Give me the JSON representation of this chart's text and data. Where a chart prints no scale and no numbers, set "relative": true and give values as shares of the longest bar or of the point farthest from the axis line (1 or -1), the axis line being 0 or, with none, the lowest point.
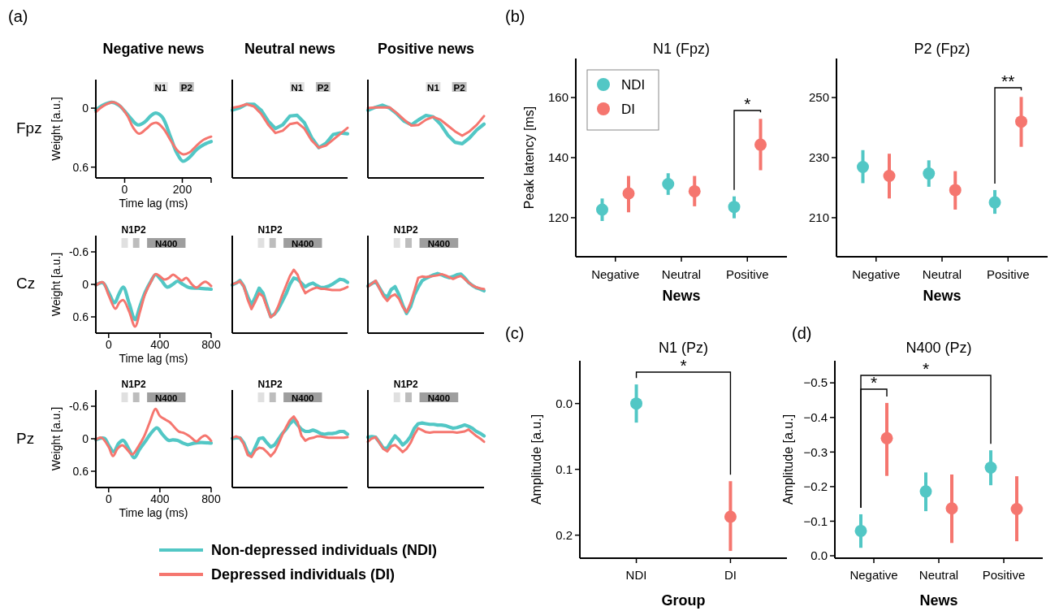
{
  "chart_data": [
    {
      "type": "line",
      "title": "Negative news",
      "xlabel": "Time lag (ms)",
      "ylabel": "Weight [a.u.]",
      "annotations": [
        "(a)",
        "Fpz"
      ],
      "xlim": [
        -100,
        300
      ],
      "xticks": [
        0,
        200,
        {
          "value": 300,
          "label": null
        }
      ],
      "ylim": [
        0.71,
        -0.29
      ],
      "yticks": [
        0,
        0.6
      ],
      "bands": [
        {
          "axis": "x",
          "from": 100,
          "to": 150,
          "label": "N1",
          "color": "#e0e0e0"
        },
        {
          "axis": "x",
          "from": 190,
          "to": 240,
          "label": "P2",
          "color": "#bdbdbd"
        }
      ],
      "series": [
        {
          "color": "#52c7c5",
          "x": [
            -100,
            -75,
            -45,
            -20,
            0,
            20,
            45,
            70,
            90,
            108,
            130,
            160,
            180,
            202,
            225,
            250,
            275,
            300
          ],
          "values": [
            0.02,
            -0.03,
            -0.06,
            -0.03,
            0.03,
            0.1,
            0.17,
            0.14,
            0.08,
            0.05,
            0.09,
            0.3,
            0.45,
            0.54,
            0.5,
            0.42,
            0.37,
            0.34
          ]
        },
        {
          "color": "#f5766f",
          "x": [
            -100,
            -75,
            -40,
            -15,
            10,
            30,
            50,
            75,
            95,
            112,
            135,
            160,
            180,
            203,
            225,
            250,
            275,
            300
          ],
          "values": [
            0.04,
            -0.02,
            -0.06,
            -0.02,
            0.08,
            0.2,
            0.26,
            0.21,
            0.16,
            0.15,
            0.21,
            0.33,
            0.42,
            0.47,
            0.45,
            0.38,
            0.32,
            0.29
          ]
        }
      ]
    },
    {
      "type": "line",
      "title": "Neutral news",
      "relative": true,
      "annotations": [
        "N1",
        "P2"
      ],
      "categories": [
        null,
        null,
        null,
        null,
        null,
        null,
        null,
        null,
        null,
        null,
        null,
        null,
        null,
        null,
        null,
        null,
        null
      ],
      "series": [
        {
          "color": "#52c7c5",
          "values": [
            0.92,
            0.95,
            1,
            1,
            0.92,
            0.77,
            0.67,
            0.72,
            0.84,
            0.85,
            0.75,
            0.55,
            0.41,
            0.47,
            0.59,
            0.61,
            0.6
          ]
        },
        {
          "color": "#f5766f",
          "values": [
            0.95,
            0.97,
            1,
            0.97,
            0.87,
            0.72,
            0.61,
            0.64,
            0.73,
            0.75,
            0.67,
            0.51,
            0.41,
            0.44,
            0.52,
            0.6,
            0.68
          ]
        }
      ]
    },
    {
      "type": "line",
      "title": "Positive news",
      "relative": true,
      "annotations": [
        "N1",
        "P2"
      ],
      "categories": [
        null,
        null,
        null,
        null,
        null,
        null,
        null,
        null,
        null,
        null,
        null,
        null,
        null,
        null,
        null,
        null,
        null
      ],
      "series": [
        {
          "color": "#52c7c5",
          "values": [
            0.93,
            0.97,
            1,
            0.96,
            0.88,
            0.78,
            0.73,
            0.8,
            0.86,
            0.84,
            0.74,
            0.59,
            0.49,
            0.47,
            0.55,
            0.66,
            0.74
          ]
        },
        {
          "color": "#f5766f",
          "values": [
            0.96,
            0.97,
            0.97,
            0.97,
            0.89,
            0.8,
            0.72,
            0.73,
            0.8,
            0.84,
            0.8,
            0.72,
            0.64,
            0.58,
            0.64,
            0.73,
            0.85
          ]
        }
      ]
    },
    {
      "type": "line",
      "xlabel": "Time lag (ms)",
      "ylabel": "Weight [a.u.]",
      "annotations": [
        "Cz",
        "N1P2"
      ],
      "xlim": [
        -100,
        800
      ],
      "xticks": [
        0,
        400,
        800
      ],
      "ylim": [
        0.9,
        -0.9
      ],
      "yticks": [
        -0.6,
        0,
        0.6
      ],
      "bands": [
        {
          "axis": "x",
          "from": 100,
          "to": 150,
          "color": "#e0e0e0"
        },
        {
          "axis": "x",
          "from": 190,
          "to": 240,
          "color": "#bdbdbd"
        },
        {
          "axis": "x",
          "from": 300,
          "to": 600,
          "label": "N400",
          "color": "#9e9e9e"
        }
      ],
      "series": [
        {
          "color": "#52c7c5",
          "x": [
            -100,
            -46,
            0,
            46,
            80,
            114,
            160,
            206,
            245,
            286,
            330,
            366,
            410,
            457,
            500,
            537,
            580,
            629,
            700,
            800
          ],
          "values": [
            0.01,
            -0.03,
            0.15,
            0.34,
            0.18,
            0.05,
            0.35,
            0.65,
            0.4,
            0.14,
            -0.06,
            -0.18,
            -0.08,
            0.05,
            0.0,
            -0.06,
            0.0,
            0.06,
            0.07,
            0.09
          ]
        },
        {
          "color": "#f5766f",
          "x": [
            -100,
            -46,
            0,
            53,
            85,
            114,
            160,
            206,
            245,
            286,
            330,
            366,
            400,
            434,
            470,
            503,
            540,
            571,
            606,
            650,
            686,
            720,
            754,
            800
          ],
          "values": [
            0.02,
            -0.04,
            0.2,
            0.45,
            0.33,
            0.29,
            0.5,
            0.78,
            0.5,
            0.17,
            -0.05,
            -0.19,
            -0.15,
            -0.09,
            -0.12,
            -0.18,
            -0.12,
            -0.07,
            -0.12,
            0.0,
            0.06,
            0.0,
            -0.05,
            0.03
          ]
        }
      ]
    },
    {
      "type": "line",
      "relative": true,
      "annotations": [
        "N400",
        "N1P2"
      ],
      "categories": [
        null,
        null,
        null,
        null,
        null,
        null,
        null,
        null,
        null,
        null,
        null,
        null,
        null,
        null,
        null,
        null,
        null,
        null,
        null,
        null,
        null,
        null,
        null,
        null,
        null,
        null,
        null,
        null,
        null,
        null,
        null
      ],
      "series": [
        {
          "color": "#52c7c5",
          "values": [
            0.76,
            0.79,
            0.83,
            0.74,
            0.58,
            0.44,
            0.57,
            0.71,
            0.63,
            0.44,
            0.26,
            0.3,
            0.38,
            0.5,
            0.62,
            0.77,
            0.87,
            0.85,
            0.79,
            0.73,
            0.77,
            0.79,
            0.75,
            0.72,
            0.72,
            0.74,
            0.77,
            0.81,
            0.85,
            0.84,
            0.8
          ]
        },
        {
          "color": "#f5766f",
          "values": [
            0.77,
            0.79,
            0.82,
            0.74,
            0.53,
            0.38,
            0.5,
            0.63,
            0.58,
            0.41,
            0.25,
            0.3,
            0.43,
            0.6,
            0.75,
            0.9,
            1,
            0.92,
            0.75,
            0.63,
            0.67,
            0.7,
            0.72,
            0.7,
            0.7,
            0.69,
            0.68,
            0.68,
            0.68,
            0.7,
            0.73
          ]
        }
      ]
    },
    {
      "type": "line",
      "relative": true,
      "annotations": [
        "N400",
        "N1P2"
      ],
      "categories": [
        null,
        null,
        null,
        null,
        null,
        null,
        null,
        null,
        null,
        null,
        null,
        null,
        null,
        null,
        null,
        null,
        null,
        null,
        null,
        null,
        null,
        null,
        null,
        null,
        null,
        null,
        null,
        null,
        null,
        null,
        null
      ],
      "series": [
        {
          "color": "#52c7c5",
          "values": [
            0.79,
            0.83,
            0.87,
            0.76,
            0.65,
            0.6,
            0.73,
            0.78,
            0.65,
            0.47,
            0.33,
            0.44,
            0.64,
            0.77,
            0.88,
            0.92,
            0.95,
            0.98,
            1,
            0.98,
            0.95,
            0.93,
            0.95,
            0.98,
            0.99,
            0.93,
            0.85,
            0.8,
            0.76,
            0.74,
            0.71
          ]
        },
        {
          "color": "#f5766f",
          "values": [
            0.78,
            0.83,
            0.88,
            0.75,
            0.62,
            0.54,
            0.62,
            0.65,
            0.58,
            0.44,
            0.35,
            0.5,
            0.71,
            0.93,
            0.95,
            0.94,
            0.95,
            0.96,
            0.97,
            0.99,
            0.97,
            0.94,
            0.91,
            0.94,
            0.96,
            0.91,
            0.85,
            0.8,
            0.77,
            0.75,
            0.74
          ]
        }
      ]
    },
    {
      "type": "line",
      "xlabel": "Time lag (ms)",
      "ylabel": "Weight [a.u.]",
      "annotations": [
        "Pz",
        "N1P2"
      ],
      "xlim": [
        -100,
        800
      ],
      "xticks": [
        0,
        400,
        800
      ],
      "ylim": [
        0.9,
        -0.9
      ],
      "yticks": [
        -0.6,
        0,
        0.6
      ],
      "bands": [
        {
          "axis": "x",
          "from": 100,
          "to": 150,
          "color": "#e0e0e0"
        },
        {
          "axis": "x",
          "from": 190,
          "to": 240,
          "color": "#bdbdbd"
        },
        {
          "axis": "x",
          "from": 300,
          "to": 600,
          "label": "N400",
          "color": "#9e9e9e"
        }
      ],
      "series": [
        {
          "color": "#52c7c5",
          "x": [
            -100,
            -34,
            0,
            39,
            80,
            114,
            160,
            199,
            240,
            286,
            330,
            377,
            420,
            469,
            500,
            537,
            580,
            617,
            670,
            720,
            800
          ],
          "values": [
            0.02,
            -0.01,
            0.12,
            0.24,
            0.08,
            0.03,
            0.2,
            0.35,
            0.2,
            0.05,
            -0.1,
            -0.2,
            -0.08,
            0.03,
            0.02,
            0.03,
            0.08,
            0.11,
            0.08,
            0.07,
            0.08
          ]
        },
        {
          "color": "#f5766f",
          "x": [
            -100,
            -57,
            0,
            34,
            70,
            107,
            145,
            183,
            230,
            274,
            320,
            366,
            400,
            446,
            480,
            514,
            550,
            583,
            630,
            686,
            720,
            754,
            800
          ],
          "values": [
            0.02,
            -0.02,
            0.15,
            0.32,
            0.18,
            0.12,
            0.2,
            0.29,
            0.15,
            -0.03,
            -0.3,
            -0.55,
            -0.42,
            -0.35,
            -0.3,
            -0.21,
            -0.13,
            -0.11,
            -0.05,
            0.05,
            -0.02,
            -0.06,
            0.04
          ]
        }
      ]
    },
    {
      "type": "line",
      "relative": true,
      "legend": "bottom",
      "annotations": [
        "N400",
        "N1P2"
      ],
      "categories": [
        null,
        null,
        null,
        null,
        null,
        null,
        null,
        null,
        null,
        null,
        null,
        null,
        null,
        null,
        null,
        null,
        null,
        null,
        null,
        null,
        null,
        null,
        null,
        null,
        null,
        null,
        null,
        null,
        null,
        null,
        null
      ],
      "series": [
        {
          "name": "Non-depressed individuals (NDI)",
          "color": "#52c7c5",
          "values": [
            0.69,
            0.7,
            0.7,
            0.63,
            0.5,
            0.45,
            0.57,
            0.69,
            0.7,
            0.63,
            0.57,
            0.6,
            0.68,
            0.76,
            0.82,
            0.9,
            0.95,
            0.88,
            0.82,
            0.79,
            0.79,
            0.81,
            0.79,
            0.76,
            0.75,
            0.76,
            0.76,
            0.77,
            0.79,
            0.79,
            0.75
          ]
        },
        {
          "name": "Depressed individuals (DI)",
          "color": "#f5766f",
          "values": [
            0.7,
            0.72,
            0.7,
            0.61,
            0.46,
            0.43,
            0.52,
            0.56,
            0.55,
            0.5,
            0.44,
            0.5,
            0.61,
            0.74,
            0.85,
            0.95,
            1,
            0.92,
            0.73,
            0.66,
            0.69,
            0.7,
            0.72,
            0.72,
            0.71,
            0.7,
            0.7,
            0.7,
            0.7,
            0.7,
            0.71
          ]
        }
      ]
    },
    {
      "type": "line",
      "relative": true,
      "annotations": [
        "N400",
        "N1P2"
      ],
      "categories": [
        null,
        null,
        null,
        null,
        null,
        null,
        null,
        null,
        null,
        null,
        null,
        null,
        null,
        null,
        null,
        null,
        null,
        null,
        null,
        null,
        null,
        null,
        null,
        null,
        null,
        null,
        null,
        null,
        null,
        null,
        null
      ],
      "series": [
        {
          "color": "#52c7c5",
          "values": [
            0.78,
            0.79,
            0.78,
            0.7,
            0.61,
            0.61,
            0.71,
            0.8,
            0.74,
            0.66,
            0.71,
            0.79,
            0.92,
            0.99,
            1,
            0.99,
            0.98,
            0.98,
            0.97,
            0.97,
            0.96,
            0.94,
            0.92,
            0.93,
            0.95,
            0.97,
            0.95,
            0.92,
            0.87,
            0.84,
            0.8
          ]
        },
        {
          "color": "#f5766f",
          "values": [
            0.71,
            0.76,
            0.78,
            0.69,
            0.6,
            0.56,
            0.64,
            0.66,
            0.61,
            0.55,
            0.6,
            0.69,
            0.82,
            0.92,
            0.89,
            0.86,
            0.85,
            0.86,
            0.86,
            0.86,
            0.86,
            0.86,
            0.86,
            0.85,
            0.86,
            0.87,
            0.9,
            0.85,
            0.8,
            0.76,
            0.71
          ]
        }
      ]
    },
    {
      "type": "scatter",
      "title": "N1 (Fpz)",
      "xlabel": "News",
      "ylabel": "Peak latency [ms]",
      "annotations": [
        "(b)",
        "*"
      ],
      "categories": [
        "Negative",
        "Neutral",
        "Positive"
      ],
      "ylim": [
        107,
        173
      ],
      "yticks": [
        120,
        140,
        160
      ],
      "legend": "top left",
      "marker": "circle",
      "series": [
        {
          "name": "NDI",
          "color": "#52c7c5",
          "values": [
            122.7,
            131.2,
            123.6
          ],
          "errors": [
            [
              118.9,
              126.4
            ],
            [
              127.6,
              134.8
            ],
            [
              119.8,
              127.1
            ]
          ]
        },
        {
          "name": "DI",
          "color": "#f5766f",
          "values": [
            128.1,
            128.8,
            144.3
          ],
          "errors": [
            [
              121.8,
              133.9
            ],
            [
              123.8,
              133.9
            ],
            [
              135.8,
              152.9
            ]
          ]
        }
      ]
    },
    {
      "type": "scatter",
      "title": "P2 (Fpz)",
      "xlabel": "News",
      "annotations": [
        "**"
      ],
      "categories": [
        "Negative",
        "Neutral",
        "Positive"
      ],
      "ylim": [
        197,
        263
      ],
      "yticks": [
        210,
        230,
        250
      ],
      "marker": "circle",
      "series": [
        {
          "color": "#52c7c5",
          "values": [
            226.9,
            224.7,
            215.1
          ],
          "errors": [
            [
              221.5,
              232.5
            ],
            [
              220.3,
              229.1
            ],
            [
              211.3,
              219.2
            ]
          ]
        },
        {
          "color": "#f5766f",
          "values": [
            223.9,
            219.2,
            242.0
          ],
          "errors": [
            [
              216.4,
              231.3
            ],
            [
              212.7,
              225.5
            ],
            [
              233.6,
              250.2
            ]
          ]
        }
      ]
    },
    {
      "type": "scatter",
      "title": "N1 (Pz)",
      "xlabel": "Group",
      "ylabel": "Amplitude [a.u.]",
      "annotations": [
        "(c)",
        "*"
      ],
      "categories": [
        "NDI",
        "DI"
      ],
      "ylim": [
        0.235,
        -0.065
      ],
      "yticks": [
        {
          "value": 0,
          "label": "0.0"
        },
        {
          "value": 0.1,
          "label": "0.1"
        },
        {
          "value": 0.2,
          "label": "0.2"
        }
      ],
      "marker": "circle",
      "series": [
        {
          "colors": [
            "#52c7c5",
            "#f5766f"
          ],
          "values": [
            0.0,
            0.172
          ],
          "errors": [
            [
              -0.029,
              0.029
            ],
            [
              0.118,
              0.224
            ]
          ]
        }
      ]
    },
    {
      "type": "scatter",
      "title": "N400 (Pz)",
      "xlabel": "News",
      "ylabel": "Amplitude [a.u.]",
      "annotations": [
        "(d)",
        "*",
        "*"
      ],
      "categories": [
        "Negative",
        "Neutral",
        "Positive"
      ],
      "ylim": [
        0.007,
        -0.564
      ],
      "yticks": [
        {
          "value": 0,
          "label": "0.0"
        },
        {
          "value": -0.1,
          "label": "−0.1"
        },
        {
          "value": -0.2,
          "label": "−0.2"
        },
        {
          "value": -0.3,
          "label": "−0.3"
        },
        {
          "value": -0.4,
          "label": "−0.4"
        },
        {
          "value": -0.5,
          "label": "−0.5"
        }
      ],
      "marker": "circle",
      "series": [
        {
          "color": "#52c7c5",
          "values": [
            -0.072,
            -0.186,
            -0.255
          ],
          "errors": [
            [
              -0.12,
              -0.023
            ],
            [
              -0.241,
              -0.129
            ],
            [
              -0.305,
              -0.204
            ]
          ]
        },
        {
          "color": "#f5766f",
          "values": [
            -0.34,
            -0.137,
            -0.135
          ],
          "errors": [
            [
              -0.442,
              -0.231
            ],
            [
              -0.235,
              -0.037
            ],
            [
              -0.23,
              -0.042
            ]
          ]
        }
      ]
    }
  ]
}
